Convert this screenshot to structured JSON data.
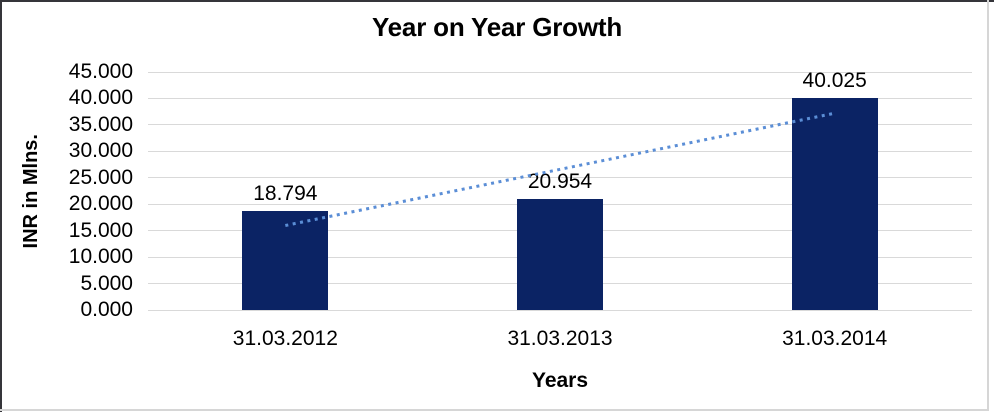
{
  "frame": {
    "border_dark_color": "#35353a",
    "border_light_color": "#d6d6d6",
    "background": "#ffffff"
  },
  "chart_data": {
    "type": "bar",
    "title": "Year on Year Growth",
    "categories": [
      "31.03.2012",
      "31.03.2013",
      "31.03.2014"
    ],
    "values": [
      18.794,
      20.954,
      40.025
    ],
    "data_labels": [
      "18.794",
      "20.954",
      "40.025"
    ],
    "xlabel": "Years",
    "ylabel": "INR in Mlns.",
    "ylim": [
      0,
      45
    ],
    "ytick_step": 5.0,
    "ytick_labels": [
      "45.000",
      "40.000",
      "35.000",
      "30.000",
      "25.000",
      "20.000",
      "15.000",
      "10.000",
      "5.000",
      "0.000"
    ],
    "grid": true,
    "legend": "none",
    "bar_color": "#0b2364",
    "gridline_color": "#d9d9d9",
    "text_color": "#000000",
    "trendline": {
      "fit": "linear",
      "style": "dotted",
      "color": "#5b8ed6",
      "endpoint_values": [
        15.975,
        37.207
      ],
      "spans_categories": [
        "31.03.2012",
        "31.03.2014"
      ]
    }
  }
}
